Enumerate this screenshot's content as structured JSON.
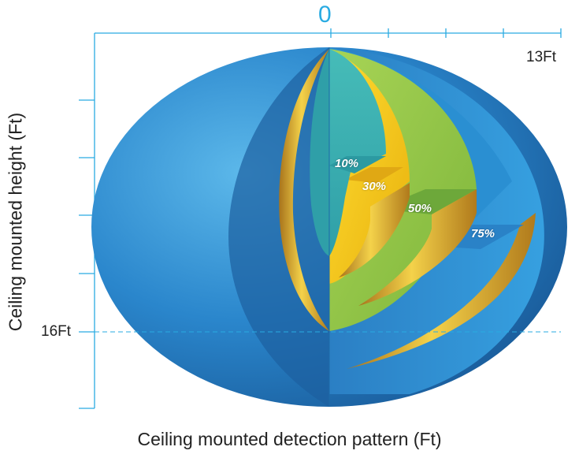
{
  "diagram": {
    "origin_label": "0",
    "horizontal_max_label": "13Ft",
    "vertical_mark_label": "16Ft",
    "x_axis_label": "Ceiling mounted detection pattern (Ft)",
    "y_axis_label": "Ceiling mounted height (Ft)",
    "zones": [
      {
        "label": "10%"
      },
      {
        "label": "30%"
      },
      {
        "label": "50%"
      },
      {
        "label": "75%"
      }
    ]
  },
  "colors": {
    "axis": "#29abe2",
    "outer_sphere": "#1f7cc0",
    "inner_shell": "#2a8fd2",
    "green_zone": "#8cc63f",
    "yellow_band": "#f2c41a",
    "teal_core": "#3cafb4"
  }
}
